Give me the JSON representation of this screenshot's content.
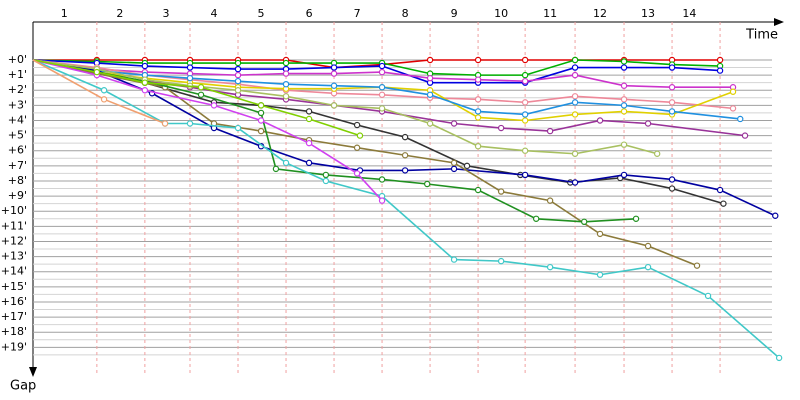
{
  "chart_data": {
    "type": "line",
    "x_label": "Time",
    "y_label": "Gap",
    "xlim": [
      0,
      15.6
    ],
    "ylim": [
      0,
      20.5
    ],
    "xticks": [
      {
        "value": 0.65,
        "label": "1"
      },
      {
        "value": 1.81,
        "label": "2"
      },
      {
        "value": 2.77,
        "label": "3"
      },
      {
        "value": 3.77,
        "label": "4"
      },
      {
        "value": 4.75,
        "label": "5"
      },
      {
        "value": 5.75,
        "label": "6"
      },
      {
        "value": 6.75,
        "label": "7"
      },
      {
        "value": 7.75,
        "label": "8"
      },
      {
        "value": 8.77,
        "label": "9"
      },
      {
        "value": 9.75,
        "label": "10"
      },
      {
        "value": 10.77,
        "label": "11"
      },
      {
        "value": 11.81,
        "label": "12"
      },
      {
        "value": 12.81,
        "label": "13"
      },
      {
        "value": 13.67,
        "label": "14"
      }
    ],
    "lap_lines": [
      1.33,
      2.33,
      3.27,
      4.27,
      5.27,
      6.27,
      7.27,
      8.27,
      9.27,
      10.25,
      11.29,
      12.31,
      13.31,
      14.31
    ],
    "lap_line_color": "#f0a0a0",
    "yticks": [
      {
        "value": 0,
        "label": "+0'"
      },
      {
        "value": 1,
        "label": "+1'"
      },
      {
        "value": 2,
        "label": "+2'"
      },
      {
        "value": 3,
        "label": "+3'"
      },
      {
        "value": 4,
        "label": "+4'"
      },
      {
        "value": 5,
        "label": "+5'"
      },
      {
        "value": 6,
        "label": "+6'"
      },
      {
        "value": 7,
        "label": "+7'"
      },
      {
        "value": 8,
        "label": "+8'"
      },
      {
        "value": 9,
        "label": "+9'"
      },
      {
        "value": 10,
        "label": "+10'"
      },
      {
        "value": 11,
        "label": "+11'"
      },
      {
        "value": 12,
        "label": "+12'"
      },
      {
        "value": 13,
        "label": "+13'"
      },
      {
        "value": 14,
        "label": "+14'"
      },
      {
        "value": 15,
        "label": "+15'"
      },
      {
        "value": 16,
        "label": "+16'"
      },
      {
        "value": 17,
        "label": "+17'"
      },
      {
        "value": 18,
        "label": "+18'"
      },
      {
        "value": 19,
        "label": "+19'"
      }
    ],
    "y_minor_ticks": [
      0.5,
      1.5,
      2.5,
      3.5,
      4.5,
      5.5,
      6.5,
      7.5,
      8.5,
      9.5,
      10.5,
      11.5,
      12.5,
      13.5,
      14.5,
      15.5,
      16.5,
      17.5,
      18.5,
      19.5
    ],
    "grid": true,
    "series": [
      {
        "color": "#e00000",
        "x": [
          0,
          1.33,
          2.33,
          3.27,
          4.27,
          5.27,
          6.27,
          7.27,
          8.27,
          9.27,
          10.25,
          11.29,
          12.31,
          13.31,
          14.31
        ],
        "values": [
          0,
          0,
          0,
          0,
          0,
          0,
          0.5,
          0.3,
          0,
          0,
          0,
          0,
          0,
          0,
          0
        ]
      },
      {
        "color": "#00b000",
        "x": [
          0,
          1.33,
          2.33,
          3.27,
          4.27,
          5.27,
          6.27,
          7.27,
          8.27,
          9.27,
          10.25,
          11.29,
          12.31,
          13.31,
          14.31
        ],
        "values": [
          0,
          0.1,
          0.2,
          0.2,
          0.2,
          0.2,
          0.2,
          0.2,
          0.9,
          1.0,
          1.0,
          0,
          0.1,
          0.3,
          0.4
        ]
      },
      {
        "color": "#0000e0",
        "x": [
          0,
          1.33,
          2.33,
          3.27,
          4.27,
          5.27,
          6.27,
          7.27,
          8.27,
          9.27,
          10.25,
          11.29,
          12.31,
          13.31,
          14.31
        ],
        "values": [
          0,
          0.2,
          0.4,
          0.5,
          0.6,
          0.6,
          0.5,
          0.4,
          1.5,
          1.5,
          1.5,
          0.5,
          0.5,
          0.5,
          0.7
        ]
      },
      {
        "color": "#cc33cc",
        "x": [
          0,
          1.33,
          2.33,
          3.27,
          4.27,
          5.27,
          6.27,
          7.27,
          8.27,
          9.27,
          10.25,
          11.29,
          12.31,
          13.31,
          14.58
        ],
        "values": [
          0,
          0.6,
          0.8,
          0.9,
          1.0,
          0.9,
          0.9,
          0.8,
          1.2,
          1.3,
          1.4,
          1.0,
          1.7,
          1.8,
          1.8
        ]
      },
      {
        "color": "#ee8899",
        "x": [
          0,
          1.33,
          2.33,
          3.27,
          4.27,
          5.27,
          6.27,
          7.27,
          8.27,
          9.27,
          10.25,
          11.29,
          12.31,
          13.31,
          14.58
        ],
        "values": [
          0,
          0.5,
          1.0,
          1.3,
          1.6,
          2.0,
          2.2,
          2.3,
          2.5,
          2.6,
          2.8,
          2.4,
          2.6,
          2.8,
          3.2
        ]
      },
      {
        "color": "#e0d000",
        "x": [
          0,
          1.33,
          2.33,
          3.27,
          4.27,
          5.27,
          6.27,
          7.27,
          8.27,
          9.27,
          10.25,
          11.29,
          12.31,
          13.31,
          14.58
        ],
        "values": [
          0,
          0.8,
          1.2,
          1.5,
          1.8,
          1.9,
          1.9,
          1.8,
          2.0,
          3.8,
          4.0,
          3.6,
          3.4,
          3.6,
          2.1
        ]
      },
      {
        "color": "#2090e0",
        "x": [
          0,
          1.33,
          2.33,
          3.27,
          4.27,
          5.27,
          6.27,
          7.27,
          8.27,
          9.27,
          10.25,
          11.29,
          12.31,
          13.31,
          14.73
        ],
        "values": [
          0,
          0.7,
          1.0,
          1.2,
          1.4,
          1.6,
          1.7,
          1.8,
          2.3,
          3.4,
          3.6,
          2.8,
          3.0,
          3.4,
          3.9
        ]
      },
      {
        "color": "#993399",
        "x": [
          0,
          1.33,
          2.33,
          3.27,
          4.27,
          5.27,
          6.27,
          7.27,
          8.77,
          9.75,
          10.77,
          11.81,
          12.81,
          14.83
        ],
        "values": [
          0,
          0.9,
          1.4,
          1.8,
          2.3,
          2.6,
          3.0,
          3.4,
          4.2,
          4.5,
          4.7,
          4.0,
          4.2,
          5.0
        ]
      },
      {
        "color": "#333333",
        "x": [
          0,
          1.33,
          2.33,
          3.77,
          4.75,
          5.75,
          6.75,
          7.75,
          9.04,
          10.15,
          11.19,
          12.23,
          13.31,
          14.38
        ],
        "values": [
          0,
          0.8,
          1.5,
          2.8,
          3.0,
          3.4,
          4.3,
          5.1,
          7.0,
          7.6,
          8.1,
          7.8,
          8.5,
          9.5
        ]
      },
      {
        "color": "#0000a0",
        "x": [
          0,
          1.33,
          2.48,
          3.77,
          4.75,
          5.75,
          6.81,
          7.75,
          8.77,
          10.25,
          11.29,
          12.31,
          13.31,
          14.31,
          15.46
        ],
        "values": [
          0,
          0.7,
          2.2,
          4.5,
          5.7,
          6.8,
          7.3,
          7.3,
          7.2,
          7.6,
          8.1,
          7.6,
          7.9,
          8.6,
          10.3
        ]
      },
      {
        "color": "#8b7a3a",
        "x": [
          0,
          1.33,
          2.75,
          3.77,
          4.75,
          5.75,
          6.75,
          7.75,
          8.77,
          9.75,
          10.77,
          11.81,
          12.81,
          13.83
        ],
        "values": [
          0,
          0.9,
          1.8,
          4.2,
          4.7,
          5.3,
          5.8,
          6.3,
          6.8,
          8.7,
          9.3,
          11.5,
          12.3,
          13.6
        ]
      },
      {
        "color": "#209020",
        "x": [
          0,
          1.33,
          2.33,
          3.5,
          4.75,
          5.06,
          6.1,
          7.27,
          8.21,
          9.27,
          10.48,
          11.48,
          12.56
        ],
        "values": [
          0,
          0.8,
          1.4,
          2.3,
          3.5,
          7.2,
          7.6,
          7.9,
          8.2,
          8.6,
          10.5,
          10.7,
          10.5
        ]
      },
      {
        "color": "#40c8c8",
        "x": [
          0,
          1.48,
          2.75,
          3.27,
          4.27,
          5.27,
          6.1,
          7.27,
          8.77,
          9.75,
          10.77,
          11.81,
          12.81,
          14.06,
          15.54
        ],
        "values": [
          0,
          2.0,
          4.2,
          4.2,
          4.5,
          6.8,
          8.0,
          9.0,
          13.2,
          13.3,
          13.7,
          14.2,
          13.7,
          15.6,
          19.7
        ]
      },
      {
        "color": "#a8c060",
        "x": [
          0,
          1.33,
          2.33,
          3.27,
          4.27,
          5.27,
          6.27,
          7.27,
          8.27,
          9.27,
          10.25,
          11.29,
          12.31,
          13.0
        ],
        "values": [
          0,
          0.6,
          1.3,
          1.7,
          2.0,
          2.4,
          3.0,
          3.2,
          4.2,
          5.7,
          6.0,
          6.2,
          5.6,
          6.2
        ]
      },
      {
        "color": "#d040f0",
        "x": [
          0,
          1.33,
          2.33,
          3.77,
          4.75,
          5.75,
          6.75,
          7.27
        ],
        "values": [
          0,
          1.0,
          2.0,
          3.0,
          4.0,
          5.5,
          7.5,
          9.3
        ]
      },
      {
        "color": "#80d000",
        "x": [
          0,
          1.33,
          2.33,
          3.5,
          4.75,
          5.75,
          6.81
        ],
        "values": [
          0,
          0.8,
          1.5,
          1.8,
          3.0,
          3.9,
          5.0
        ]
      },
      {
        "color": "#f0a070",
        "x": [
          0,
          1.48,
          2.75
        ],
        "values": [
          0,
          2.6,
          4.2
        ]
      }
    ]
  }
}
